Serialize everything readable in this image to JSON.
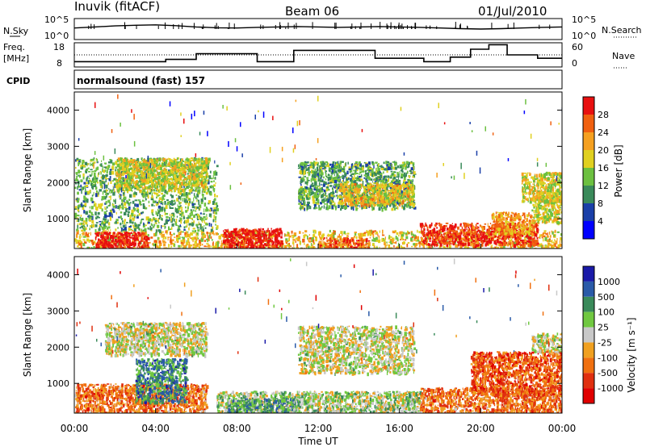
{
  "header": {
    "station": "Inuvik (fitACF)",
    "beam": "Beam 06",
    "date": "01/Jul/2010"
  },
  "summary": {
    "nsky_label": "N.Sky",
    "nsky_ticks": [
      "10^5",
      "10^0"
    ],
    "nsearch_label": "N.Search",
    "nsearch_ticks": [
      "10^5",
      "10^0"
    ],
    "freq_label": "Freq.",
    "freq_unit": "[MHz]",
    "freq_ticks": [
      "18",
      "8"
    ],
    "nave_label": "Nave",
    "nave_ticks": [
      "60",
      "0"
    ],
    "cpid_label": "CPID",
    "cpid_text": "normalsound (fast) 157"
  },
  "colors": {
    "power_scale": [
      "#0000ff",
      "#1a3fa8",
      "#3a8a5a",
      "#6cc040",
      "#e0d020",
      "#f5a020",
      "#f06010",
      "#e81010"
    ],
    "velocity_scale": [
      "#1a1aa8",
      "#2a5aa8",
      "#3a8a5a",
      "#70c840",
      "#c8c8c8",
      "#f0a020",
      "#f07010",
      "#e03010",
      "#e00000"
    ]
  },
  "chart_data": [
    {
      "type": "line",
      "name": "summary",
      "x_unit": "hours UT",
      "xlim": [
        0,
        24
      ],
      "series": [
        {
          "name": "N.Sky",
          "x": [
            0,
            1,
            2,
            3,
            4,
            5,
            6,
            7,
            8,
            9,
            10,
            11,
            12,
            13,
            14,
            15,
            16,
            17,
            18,
            19,
            20,
            21,
            22,
            23,
            24
          ],
          "values": [
            0.55,
            0.6,
            0.65,
            0.68,
            0.7,
            0.66,
            0.6,
            0.56,
            0.55,
            0.58,
            0.6,
            0.62,
            0.6,
            0.58,
            0.6,
            0.62,
            0.6,
            0.58,
            0.55,
            0.52,
            0.5,
            0.52,
            0.55,
            0.58,
            0.6
          ]
        },
        {
          "name": "Freq.",
          "x": [
            0,
            3.5,
            4.5,
            6,
            9,
            10.8,
            14.8,
            17.2,
            18.5,
            19.5,
            20.4,
            21.3,
            22.8,
            24
          ],
          "values": [
            10,
            10,
            11,
            13.5,
            10,
            15,
            11.5,
            10,
            12,
            15.5,
            17.5,
            13,
            11.5,
            11.5
          ]
        }
      ]
    },
    {
      "type": "heatmap",
      "name": "power",
      "xlabel": "Time UT",
      "ylabel": "Slant Range [km]",
      "xlim": [
        0,
        24
      ],
      "ylim": [
        180,
        4500
      ],
      "x_ticks": [
        "00:00",
        "04:00",
        "08:00",
        "12:00",
        "16:00",
        "20:00",
        "00:00"
      ],
      "y_ticks": [
        "1000",
        "2000",
        "3000",
        "4000"
      ],
      "colorbar_label": "Power [dB]",
      "colorbar_ticks": [
        "28",
        "24",
        "20",
        "16",
        "12",
        "8",
        "4"
      ],
      "colorbar_values": [
        28,
        24,
        20,
        16,
        12,
        8,
        4
      ],
      "regions": [
        {
          "t0": 0.0,
          "t1": 24.0,
          "r0": 180,
          "r1": 700,
          "level": 0.62
        },
        {
          "t0": 1.0,
          "t1": 3.6,
          "r0": 180,
          "r1": 650,
          "level": 0.95
        },
        {
          "t0": 7.3,
          "t1": 10.2,
          "r0": 180,
          "r1": 750,
          "level": 0.96
        },
        {
          "t0": 12.0,
          "t1": 14.5,
          "r0": 180,
          "r1": 500,
          "level": 0.85
        },
        {
          "t0": 17.0,
          "t1": 22.8,
          "r0": 300,
          "r1": 900,
          "level": 0.9
        },
        {
          "t0": 20.5,
          "t1": 22.5,
          "r0": 600,
          "r1": 1200,
          "level": 0.7
        },
        {
          "t0": 22.5,
          "t1": 24.0,
          "r0": 900,
          "r1": 1800,
          "level": 0.55
        },
        {
          "t0": 0.0,
          "t1": 7.0,
          "r0": 700,
          "r1": 2700,
          "level": 0.4
        },
        {
          "t0": 2.0,
          "t1": 6.5,
          "r0": 1800,
          "r1": 2700,
          "level": 0.55
        },
        {
          "t0": 11.0,
          "t1": 16.7,
          "r0": 1300,
          "r1": 2600,
          "level": 0.38
        },
        {
          "t0": 13.0,
          "t1": 16.7,
          "r0": 1400,
          "r1": 2000,
          "level": 0.62
        },
        {
          "t0": 22.0,
          "t1": 24.0,
          "r0": 1500,
          "r1": 2300,
          "level": 0.58
        }
      ]
    },
    {
      "type": "heatmap",
      "name": "velocity",
      "xlabel": "Time UT",
      "ylabel": "Slant Range [km]",
      "xlim": [
        0,
        24
      ],
      "ylim": [
        180,
        4500
      ],
      "x_ticks": [
        "00:00",
        "04:00",
        "08:00",
        "12:00",
        "16:00",
        "20:00",
        "00:00"
      ],
      "y_ticks": [
        "1000",
        "2000",
        "3000",
        "4000"
      ],
      "colorbar_label": "Velocity [m s⁻¹]",
      "colorbar_ticks": [
        "1000",
        "500",
        "100",
        "25",
        "-25",
        "-100",
        "-500",
        "-1000"
      ],
      "colorbar_values": [
        1000,
        500,
        100,
        25,
        -25,
        -100,
        -500,
        -1000
      ],
      "regions": [
        {
          "t0": 0.0,
          "t1": 6.5,
          "r0": 180,
          "r1": 1000,
          "level": 0.72
        },
        {
          "t0": 3.0,
          "t1": 5.5,
          "r0": 500,
          "r1": 1700,
          "level": 0.25
        },
        {
          "t0": 7.0,
          "t1": 17.0,
          "r0": 180,
          "r1": 800,
          "level": 0.45
        },
        {
          "t0": 7.5,
          "t1": 11.0,
          "r0": 200,
          "r1": 600,
          "level": 0.32
        },
        {
          "t0": 1.5,
          "t1": 6.5,
          "r0": 1800,
          "r1": 2700,
          "level": 0.5
        },
        {
          "t0": 11.0,
          "t1": 16.7,
          "r0": 1300,
          "r1": 2600,
          "level": 0.5
        },
        {
          "t0": 17.0,
          "t1": 24.0,
          "r0": 180,
          "r1": 900,
          "level": 0.72
        },
        {
          "t0": 19.5,
          "t1": 24.0,
          "r0": 700,
          "r1": 1900,
          "level": 0.78
        },
        {
          "t0": 22.5,
          "t1": 24.0,
          "r0": 1900,
          "r1": 2400,
          "level": 0.5
        }
      ]
    }
  ]
}
